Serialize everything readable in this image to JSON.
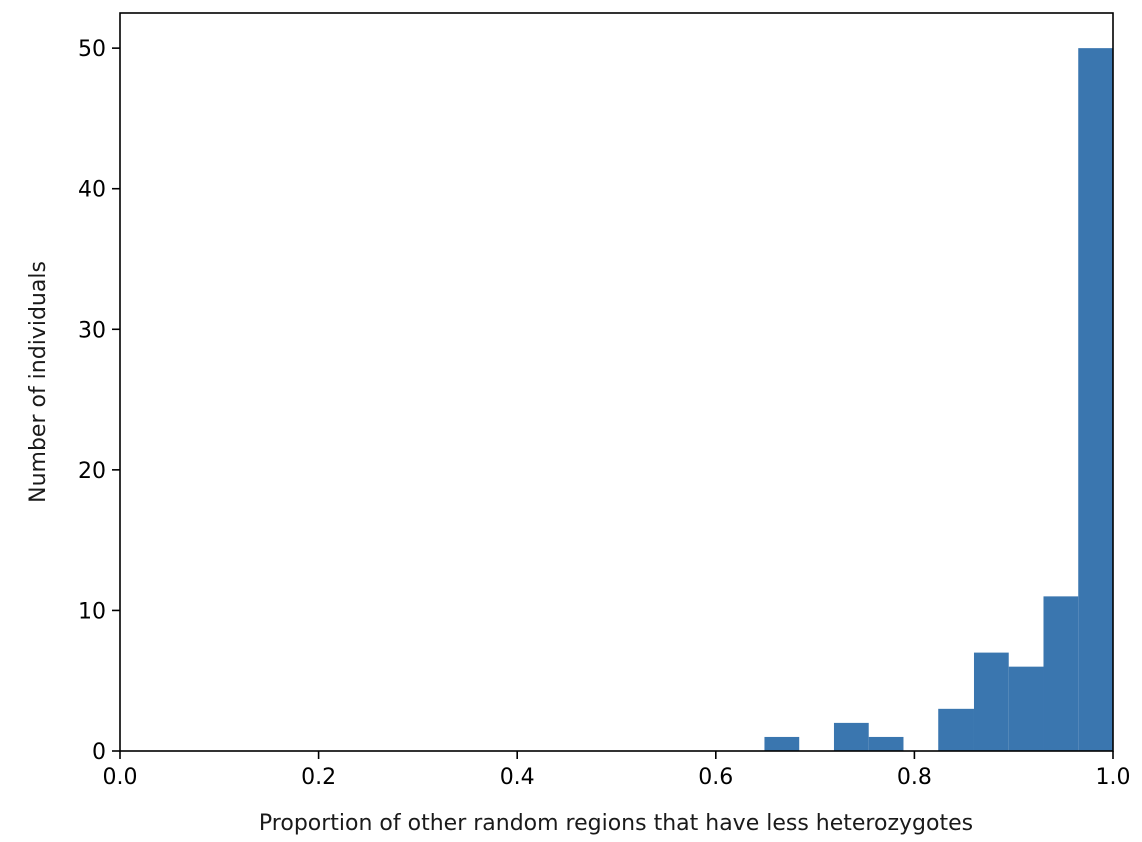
{
  "chart_data": {
    "type": "bar",
    "subtype": "histogram",
    "title": "",
    "xlabel": "Proportion of other random regions that have less heterozygotes",
    "ylabel": "Number of individuals",
    "xlim": [
      0.0,
      1.0
    ],
    "ylim": [
      0,
      52.5
    ],
    "xticks": [
      "0.0",
      "0.2",
      "0.4",
      "0.6",
      "0.8",
      "1.0"
    ],
    "yticks": [
      "0",
      "10",
      "20",
      "30",
      "40",
      "50"
    ],
    "grid": false,
    "legend": "none",
    "bar_color": "#3a76af",
    "bins": [
      {
        "x0": 0.649,
        "x1": 0.684,
        "value": 1
      },
      {
        "x0": 0.684,
        "x1": 0.719,
        "value": 0
      },
      {
        "x0": 0.719,
        "x1": 0.754,
        "value": 2
      },
      {
        "x0": 0.754,
        "x1": 0.789,
        "value": 1
      },
      {
        "x0": 0.789,
        "x1": 0.824,
        "value": 0
      },
      {
        "x0": 0.824,
        "x1": 0.86,
        "value": 3
      },
      {
        "x0": 0.86,
        "x1": 0.895,
        "value": 7
      },
      {
        "x0": 0.895,
        "x1": 0.93,
        "value": 6
      },
      {
        "x0": 0.93,
        "x1": 0.965,
        "value": 11
      },
      {
        "x0": 0.965,
        "x1": 1.0,
        "value": 50
      }
    ]
  }
}
